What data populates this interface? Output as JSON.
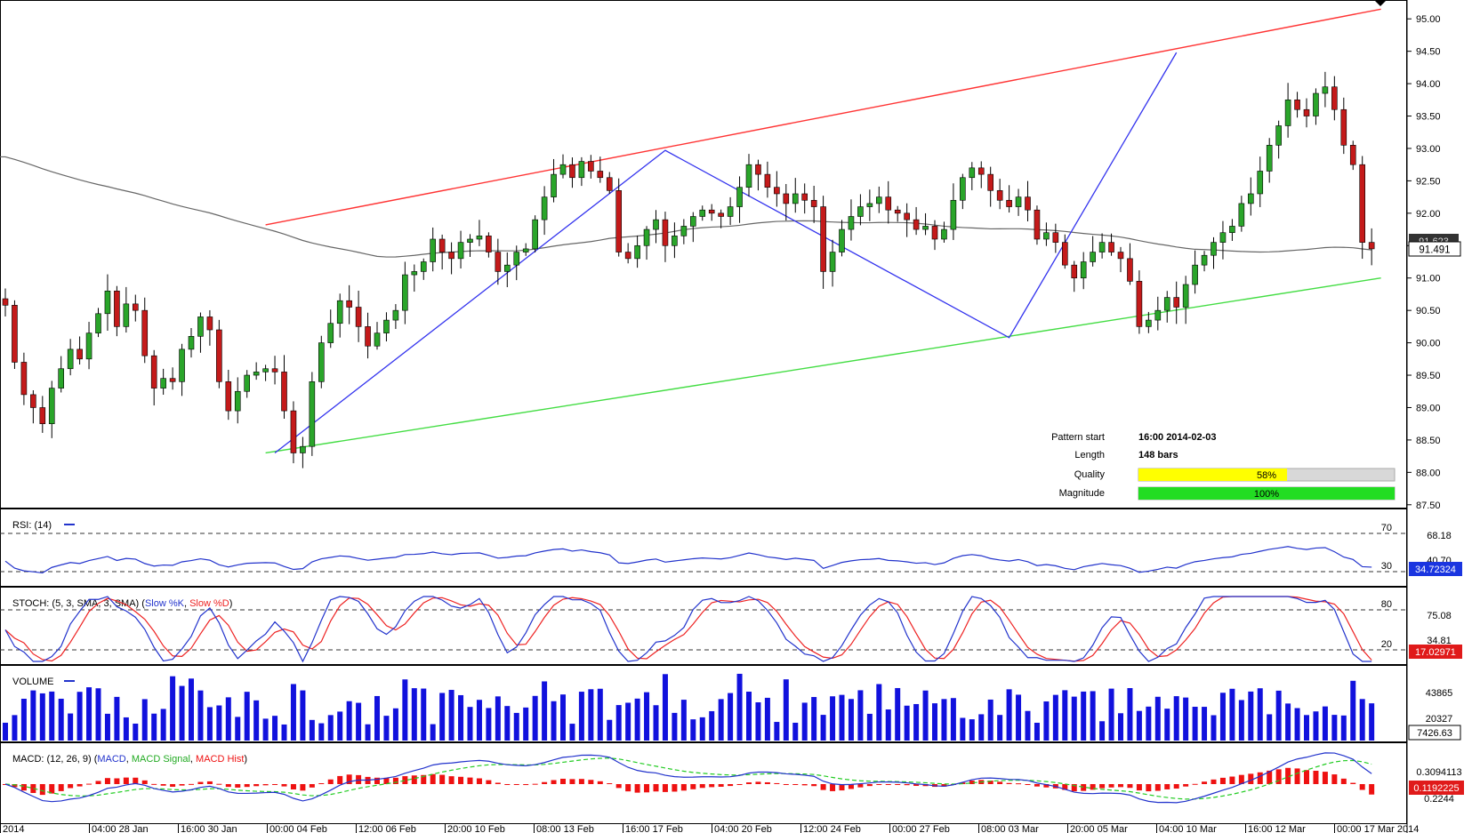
{
  "colors": {
    "up": "#2aa52a",
    "down": "#c41a1a",
    "wick": "#000000",
    "ma": "#666666",
    "resistance": "#ff3333",
    "support": "#44dd44",
    "zigzag": "#3333ee",
    "rsi": "#2233cc",
    "stoch_k": "#2233cc",
    "stoch_d": "#ee2222",
    "volume": "#1111dd",
    "macd": "#2233cc",
    "macd_signal": "#22cc22",
    "macd_hist": "#ee1111",
    "quality_bar": "#ffff00",
    "magnitude_bar": "#22dd22"
  },
  "price_axis": {
    "min": 87.25,
    "max": 95.25,
    "ticks": [
      "95.00",
      "94.50",
      "94.00",
      "93.50",
      "93.00",
      "92.50",
      "92.00",
      "91.50",
      "91.00",
      "90.50",
      "90.00",
      "89.50",
      "89.00",
      "88.50",
      "88.00",
      "87.50"
    ],
    "current_price": "91.491",
    "prev_label": "91.623"
  },
  "time_axis": [
    "2014",
    "04:00 28 Jan",
    "16:00 30 Jan",
    "00:00 04 Feb",
    "12:00 06 Feb",
    "20:00 10 Feb",
    "08:00 13 Feb",
    "16:00 17 Feb",
    "04:00 20 Feb",
    "12:00 24 Feb",
    "00:00 27 Feb",
    "08:00 03 Mar",
    "20:00 05 Mar",
    "04:00 10 Mar",
    "16:00 12 Mar",
    "00:00 17 Mar 2014"
  ],
  "pattern_info": {
    "start_label": "Pattern start",
    "start_value": "16:00 2014-02-03",
    "length_label": "Length",
    "length_value": "148 bars",
    "quality_label": "Quality",
    "quality_text": "58%",
    "quality": 0.58,
    "magnitude_label": "Magnitude",
    "magnitude_text": "100%",
    "magnitude": 1.0
  },
  "rsi": {
    "label": "RSI: (14)",
    "levels": [
      "70",
      "30"
    ],
    "value_label": "68.18",
    "current": "34.72324",
    "hidden_label": "40.70"
  },
  "stoch": {
    "label_prefix": "STOCH: (5, 3, SMA, 3, SMA) (",
    "k_label": "Slow %K",
    "sep": ", ",
    "d_label": "Slow %D",
    "label_suffix": ")",
    "levels": [
      "80",
      "20"
    ],
    "value_label": "75.08",
    "value_label2": "34.81",
    "current": "17.02971"
  },
  "volume": {
    "label": "VOLUME",
    "ticks": [
      "43865",
      "20327"
    ],
    "current": "7426.63"
  },
  "macd": {
    "label_prefix": "MACD: (12, 26, 9) (",
    "macd_label": "MACD",
    "sep": ", ",
    "signal_label": "MACD Signal",
    "hist_label": "MACD Hist",
    "label_suffix": ")",
    "ticks": [
      "0.3094113"
    ],
    "current": "0.1192225",
    "hidden_label": "0.2244"
  },
  "chart_data": {
    "type": "candlestick",
    "bars": 148,
    "closes": [
      90.58,
      89.7,
      89.2,
      89.0,
      88.75,
      89.3,
      89.6,
      89.9,
      89.75,
      90.15,
      90.45,
      90.8,
      90.25,
      90.6,
      90.5,
      89.8,
      89.3,
      89.45,
      89.4,
      89.9,
      90.1,
      90.4,
      90.2,
      89.4,
      88.95,
      89.25,
      89.5,
      89.55,
      89.6,
      89.55,
      88.95,
      88.3,
      88.4,
      89.4,
      90.0,
      90.3,
      90.65,
      90.55,
      90.25,
      89.95,
      90.15,
      90.35,
      90.5,
      91.05,
      91.1,
      91.25,
      91.6,
      91.4,
      91.3,
      91.55,
      91.6,
      91.65,
      91.4,
      91.1,
      91.2,
      91.4,
      91.45,
      91.9,
      92.25,
      92.6,
      92.75,
      92.55,
      92.8,
      92.65,
      92.55,
      92.35,
      91.4,
      91.3,
      91.5,
      91.75,
      91.9,
      91.5,
      91.65,
      91.8,
      91.95,
      92.05,
      92.0,
      91.95,
      92.1,
      92.4,
      92.75,
      92.6,
      92.4,
      92.3,
      92.15,
      92.3,
      92.2,
      92.1,
      91.1,
      91.4,
      91.75,
      91.95,
      92.1,
      92.15,
      92.25,
      92.05,
      92.0,
      91.9,
      91.75,
      91.8,
      91.6,
      91.75,
      92.2,
      92.55,
      92.7,
      92.6,
      92.35,
      92.2,
      92.1,
      92.25,
      92.05,
      91.6,
      91.7,
      91.55,
      91.2,
      91.0,
      91.25,
      91.4,
      91.55,
      91.4,
      91.3,
      90.95,
      90.25,
      90.35,
      90.5,
      90.7,
      90.55,
      90.9,
      91.2,
      91.35,
      91.55,
      91.7,
      91.8,
      92.15,
      92.3,
      92.65,
      93.05,
      93.35,
      93.75,
      93.6,
      93.5,
      93.85,
      93.95,
      93.6,
      93.05,
      92.75,
      91.55,
      91.45
    ],
    "pattern": {
      "resistance": [
        [
          28,
          91.82
        ],
        [
          148,
          95.15
        ]
      ],
      "support": [
        [
          28,
          88.3
        ],
        [
          148,
          91.0
        ]
      ],
      "zigzag": [
        [
          29,
          88.3
        ],
        [
          71,
          92.97
        ],
        [
          108,
          90.08
        ],
        [
          126,
          94.48
        ]
      ]
    },
    "rsi_range": [
      0,
      100
    ]
  }
}
